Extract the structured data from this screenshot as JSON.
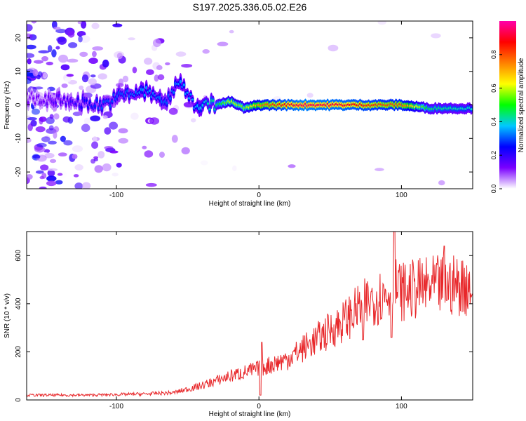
{
  "title": "S197.2025.336.05.02.E26",
  "chart_data": [
    {
      "type": "heatmap",
      "title": "S197.2025.336.05.02.E26",
      "xlabel": "Height of straight line (km)",
      "ylabel": "Frequency (Hz)",
      "xlim": [
        -163,
        150
      ],
      "ylim": [
        -25,
        25
      ],
      "x_ticks": [
        -100,
        0,
        100
      ],
      "y_ticks": [
        -20,
        -10,
        0,
        10,
        20
      ],
      "colorbar": {
        "label": "Normalized spectral amplitude",
        "range": [
          0,
          1
        ],
        "ticks": [
          0,
          0.2,
          0.4,
          0.6,
          0.8
        ],
        "colors": [
          "#ffffff",
          "#7a00ff",
          "#0000ff",
          "#00c8ff",
          "#00ff00",
          "#ffff00",
          "#ff8000",
          "#ff0000",
          "#ff00aa"
        ]
      },
      "ridge": [
        {
          "x": -160,
          "f": 2,
          "amp": 0.12
        },
        {
          "x": -130,
          "f": 1,
          "amp": 0.2
        },
        {
          "x": -110,
          "f": 0,
          "amp": 0.3
        },
        {
          "x": -95,
          "f": 3,
          "amp": 0.3
        },
        {
          "x": -80,
          "f": 4,
          "amp": 0.35
        },
        {
          "x": -65,
          "f": 1,
          "amp": 0.3
        },
        {
          "x": -55,
          "f": 7,
          "amp": 0.35
        },
        {
          "x": -45,
          "f": 0,
          "amp": 0.35
        },
        {
          "x": -30,
          "f": 0,
          "amp": 0.45
        },
        {
          "x": -20,
          "f": 1,
          "amp": 0.6
        },
        {
          "x": -10,
          "f": -1,
          "amp": 0.55
        },
        {
          "x": 0,
          "f": 0,
          "amp": 0.75
        },
        {
          "x": 30,
          "f": 0,
          "amp": 0.95
        },
        {
          "x": 60,
          "f": 0,
          "amp": 0.9
        },
        {
          "x": 90,
          "f": 0,
          "amp": 0.8
        },
        {
          "x": 100,
          "f": 0,
          "amp": 0.8
        },
        {
          "x": 120,
          "f": -1,
          "amp": 0.45
        },
        {
          "x": 148,
          "f": -1,
          "amp": 0.4
        }
      ]
    },
    {
      "type": "line",
      "xlabel": "Height of straight line (km)",
      "ylabel": "SNR (10 * v/v)",
      "xlim": [
        -163,
        150
      ],
      "ylim": [
        0,
        700
      ],
      "x_ticks": [
        -100,
        0,
        100
      ],
      "y_ticks": [
        0,
        200,
        400,
        600
      ],
      "series": [
        {
          "name": "SNR",
          "color": "#e8272a",
          "envelope": {
            "x": [
              -163,
              -120,
              -80,
              -60,
              -40,
              -20,
              0,
              20,
              40,
              60,
              70,
              80,
              90,
              95,
              100,
              120,
              150
            ],
            "y": [
              20,
              20,
              25,
              30,
              60,
              100,
              130,
              170,
              250,
              330,
              380,
              420,
              440,
              470,
              450,
              470,
              480
            ]
          },
          "spikes": [
            {
              "x": 2,
              "y": 240
            },
            {
              "x": 1,
              "y": 20
            },
            {
              "x": 95,
              "y": 700
            },
            {
              "x": 93,
              "y": 260
            },
            {
              "x": 130,
              "y": 640
            },
            {
              "x": 73,
              "y": 250
            }
          ]
        }
      ]
    }
  ]
}
